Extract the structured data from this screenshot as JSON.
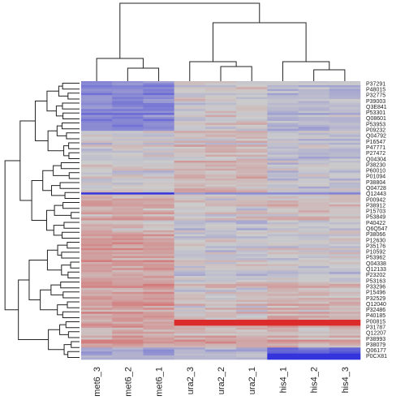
{
  "chart_data": {
    "type": "heatmap",
    "title": "",
    "xlabel": "",
    "ylabel": "",
    "columns": [
      "met6_3",
      "met6_2",
      "met6_1",
      "ura2_3",
      "ura2_2",
      "ura2_1",
      "his4_1",
      "his4_2",
      "his4_3"
    ],
    "column_groups": [
      {
        "name": "met6",
        "columns": [
          "met6_3",
          "met6_2",
          "met6_1"
        ]
      },
      {
        "name": "ura2",
        "columns": [
          "ura2_3",
          "ura2_2",
          "ura2_1"
        ]
      },
      {
        "name": "his4",
        "columns": [
          "his4_1",
          "his4_2",
          "his4_3"
        ]
      }
    ],
    "row_labels": [
      "P37291",
      "P48015",
      "P32775",
      "P39003",
      "Q3E841",
      "P53301",
      "Q08601",
      "P53953",
      "P09232",
      "Q04792",
      "P16547",
      "P47771",
      "P27472",
      "Q04304",
      "P38230",
      "P60010",
      "P01094",
      "P38804",
      "Q04728",
      "Q12443",
      "P00942",
      "P38912",
      "P15703",
      "P53849",
      "P40422",
      "Q6Q547",
      "P38066",
      "P12630",
      "P35176",
      "P10592",
      "P53962",
      "Q04338",
      "Q12133",
      "P23202",
      "P53163",
      "P33296",
      "P15496",
      "P32529",
      "Q12040",
      "P32486",
      "P40185",
      "P00815",
      "P31787",
      "Q12207",
      "P38993",
      "P38079",
      "Q06177",
      "P0CX81"
    ],
    "value_scale": {
      "low": -2,
      "mid": 0,
      "high": 2
    },
    "colors": {
      "low": "#3333dd",
      "mid": "#cccccc",
      "high": "#dd2222"
    },
    "legend": "none"
  }
}
